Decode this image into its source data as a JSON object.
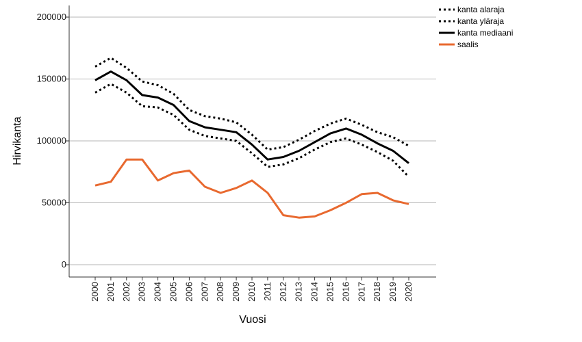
{
  "chart_data": {
    "type": "line",
    "xlabel": "Vuosi",
    "ylabel": "Hirvikanta",
    "categories": [
      "2000",
      "2001",
      "2002",
      "2003",
      "2004",
      "2005",
      "2006",
      "2007",
      "2008",
      "2009",
      "2010",
      "2011",
      "2012",
      "2013",
      "2014",
      "2015",
      "2016",
      "2017",
      "2018",
      "2019",
      "2020"
    ],
    "ylim": [
      0,
      200000
    ],
    "yticks": [
      "0",
      "50000",
      "100000",
      "150000",
      "200000"
    ],
    "grid": "horizontal",
    "legend_position": "top-right",
    "series": [
      {
        "name": "kanta alaraja",
        "style": "dotted",
        "color": "#000000",
        "values": [
          139000,
          146000,
          139000,
          128000,
          127000,
          121000,
          109000,
          104000,
          102000,
          100000,
          90000,
          79000,
          81000,
          86000,
          93000,
          99000,
          102000,
          97000,
          91000,
          84000,
          71000
        ]
      },
      {
        "name": "kanta yläraja",
        "style": "dotted",
        "color": "#000000",
        "values": [
          160000,
          167000,
          159000,
          148000,
          145000,
          138000,
          125000,
          120000,
          118000,
          115000,
          105000,
          93000,
          95000,
          101000,
          108000,
          114000,
          118000,
          113000,
          107000,
          103000,
          96000
        ]
      },
      {
        "name": "kanta mediaani",
        "style": "solid",
        "color": "#000000",
        "values": [
          149000,
          156000,
          149000,
          137000,
          135000,
          129000,
          116000,
          111000,
          109000,
          107000,
          97000,
          85000,
          87000,
          92000,
          99000,
          106000,
          110000,
          105000,
          98000,
          92000,
          82000
        ]
      },
      {
        "name": "saalis",
        "style": "solid",
        "color": "#e8692f",
        "values": [
          64000,
          67000,
          85000,
          85000,
          68000,
          74000,
          76000,
          63000,
          58000,
          62000,
          68000,
          58000,
          40000,
          38000,
          39000,
          44000,
          50000,
          57000,
          58000,
          52000,
          49000
        ]
      }
    ]
  }
}
